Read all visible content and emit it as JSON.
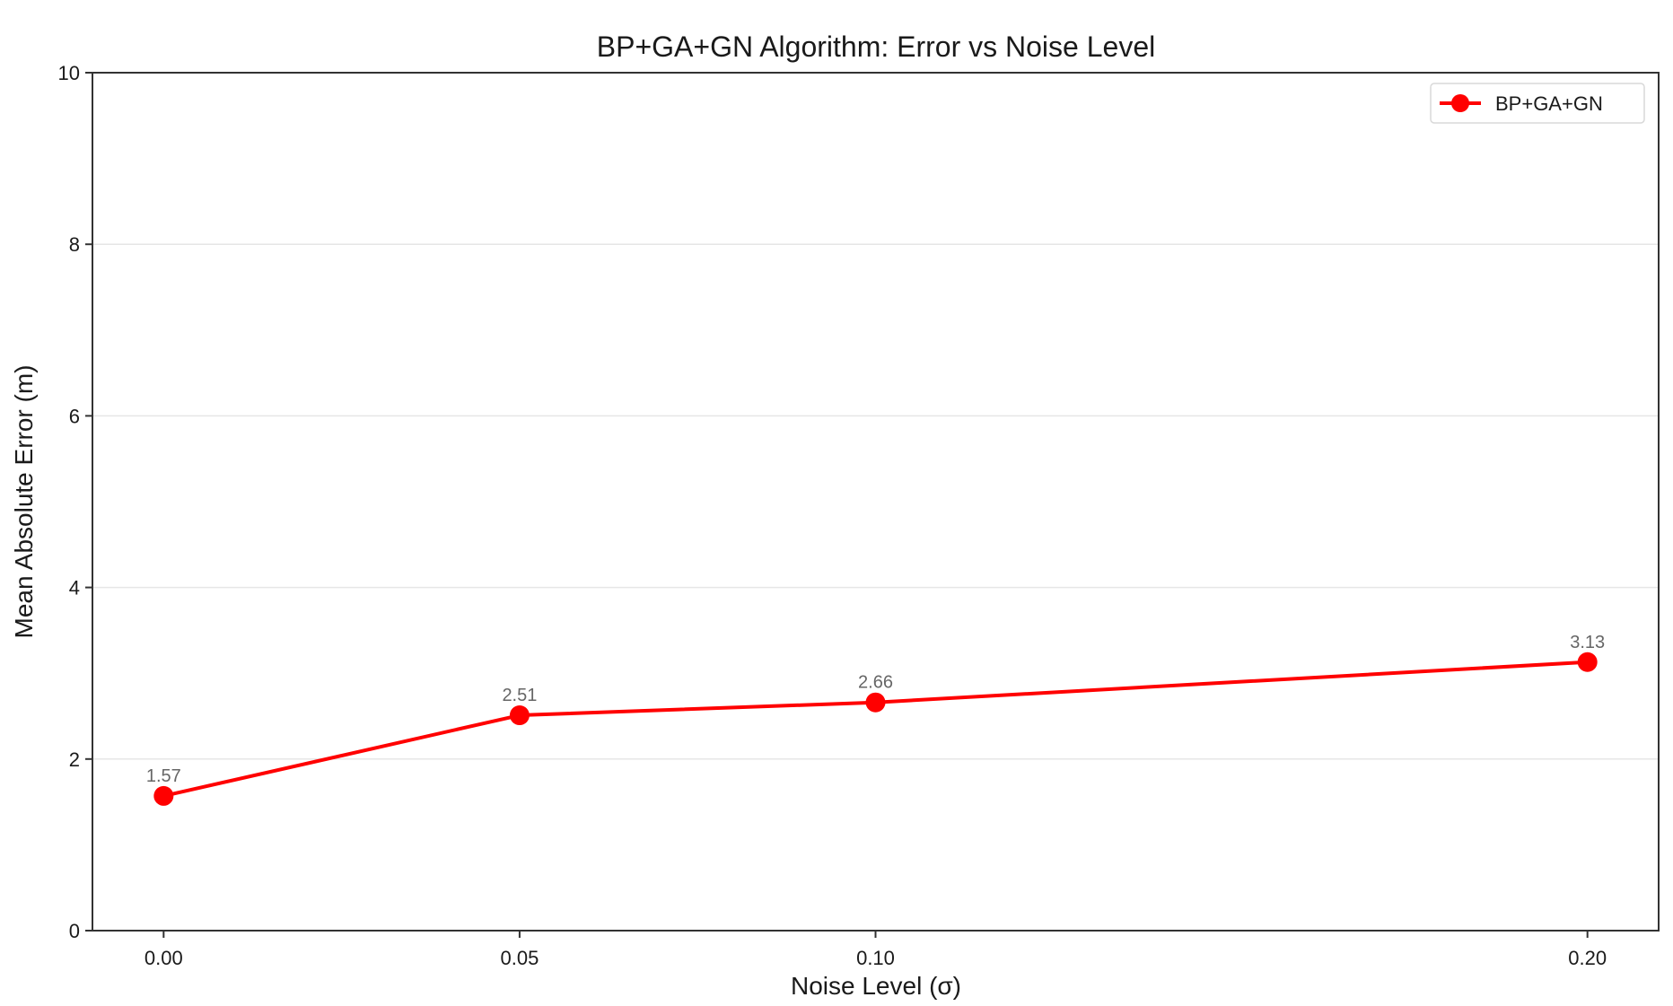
{
  "chart_data": {
    "type": "line",
    "title": "BP+GA+GN Algorithm: Error vs Noise Level",
    "xlabel": "Noise Level (σ)",
    "ylabel": "Mean Absolute Error (m)",
    "x": [
      0.0,
      0.05,
      0.1,
      0.2
    ],
    "x_tick_labels": [
      "0.00",
      "0.05",
      "0.10",
      "0.20"
    ],
    "ylim": [
      0,
      10
    ],
    "y_ticks": [
      0,
      2,
      4,
      6,
      8,
      10
    ],
    "y_tick_labels": [
      "0",
      "2",
      "4",
      "6",
      "8",
      "10"
    ],
    "grid": "horizontal",
    "legend_position": "top-right",
    "series": [
      {
        "name": "BP+GA+GN",
        "color": "#ff0000",
        "marker": "circle",
        "values": [
          1.57,
          2.51,
          2.66,
          3.13
        ],
        "data_labels": [
          "1.57",
          "2.51",
          "2.66",
          "3.13"
        ]
      }
    ]
  }
}
